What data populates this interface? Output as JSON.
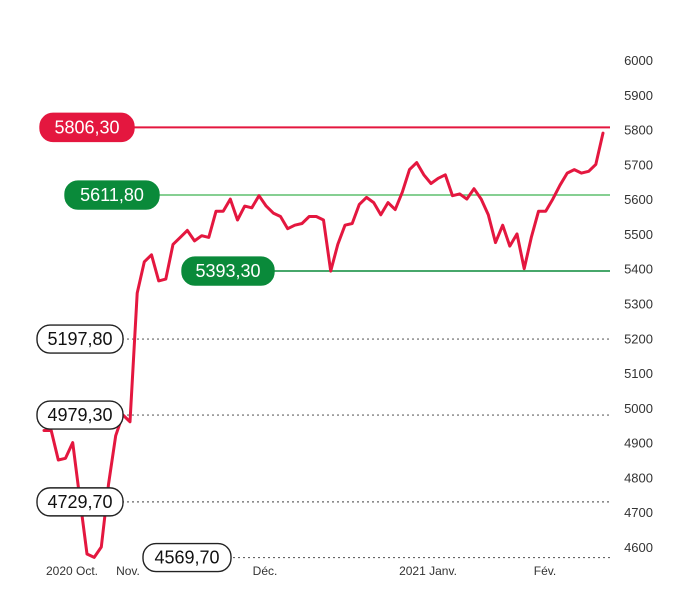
{
  "chart_data": {
    "type": "line",
    "title": "",
    "xlabel": "",
    "ylabel": "",
    "ylim": [
      4600,
      6000
    ],
    "yticks": [
      4600,
      4700,
      4800,
      4900,
      5000,
      5100,
      5200,
      5300,
      5400,
      5500,
      5600,
      5700,
      5800,
      5900,
      6000
    ],
    "x_tick_labels": [
      "2020 Oct.",
      "Nov.",
      "Déc.",
      "2021 Janv.",
      "Fév."
    ],
    "series": [
      {
        "color": "#e4173f",
        "values": [
          4935,
          4935,
          4850,
          4855,
          4900,
          4740,
          4580,
          4570,
          4600,
          4780,
          4920,
          4980,
          4960,
          5330,
          5420,
          5440,
          5365,
          5370,
          5470,
          5490,
          5510,
          5480,
          5495,
          5490,
          5565,
          5565,
          5600,
          5540,
          5580,
          5575,
          5610,
          5580,
          5560,
          5550,
          5515,
          5525,
          5530,
          5550,
          5550,
          5540,
          5393,
          5470,
          5525,
          5530,
          5585,
          5605,
          5590,
          5555,
          5590,
          5570,
          5620,
          5685,
          5705,
          5670,
          5645,
          5660,
          5670,
          5610,
          5615,
          5600,
          5630,
          5600,
          5555,
          5475,
          5525,
          5465,
          5500,
          5400,
          5490,
          5565,
          5565,
          5600,
          5640,
          5675,
          5685,
          5675,
          5680,
          5700,
          5790
        ]
      }
    ],
    "reference_lines": [
      {
        "value": 5806.3,
        "label": "5806,30",
        "color": "#e4173f",
        "style": "solid",
        "badge": "red"
      },
      {
        "value": 5611.8,
        "label": "5611,80",
        "color": "#5fbf6f",
        "style": "solid",
        "badge": "green"
      },
      {
        "value": 5393.3,
        "label": "5393,30",
        "color": "#0a8a3a",
        "style": "solid",
        "badge": "green"
      },
      {
        "value": 5197.8,
        "label": "5197,80",
        "color": "#666666",
        "style": "dotted",
        "badge": "outline"
      },
      {
        "value": 4979.3,
        "label": "4979,30",
        "color": "#666666",
        "style": "dotted",
        "badge": "outline"
      },
      {
        "value": 4729.7,
        "label": "4729,70",
        "color": "#666666",
        "style": "dotted",
        "badge": "outline"
      },
      {
        "value": 4569.7,
        "label": "4569,70",
        "color": "#666666",
        "style": "dotted",
        "badge": "outline"
      }
    ],
    "grid": false,
    "legend": "none"
  }
}
